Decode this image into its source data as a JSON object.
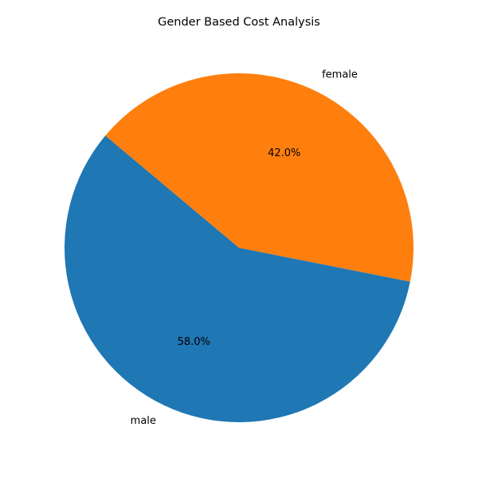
{
  "chart_data": {
    "type": "pie",
    "title": "Gender Based Cost Analysis",
    "labels": [
      "male",
      "female"
    ],
    "values": [
      58.0,
      42.0
    ],
    "percent_labels": [
      "58.0%",
      "42.0%"
    ],
    "colors": [
      "#1f77b4",
      "#ff7f0e"
    ],
    "start_angle_deg": 140,
    "direction": "counterclockwise"
  }
}
